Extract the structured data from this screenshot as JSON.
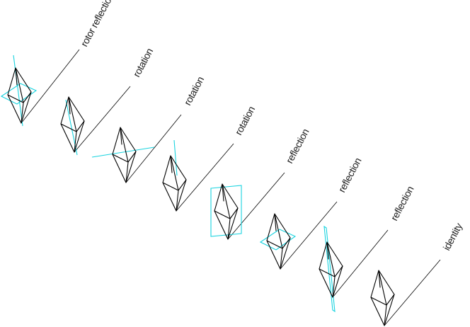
{
  "diagram": {
    "line_color": "#000000",
    "symmetry_color": "#19d3df",
    "operations": [
      {
        "label": "rotor reflection",
        "symmetry_element": "horizontal-plane-with-axis"
      },
      {
        "label": "rotation",
        "symmetry_element": "axis"
      },
      {
        "label": "rotation",
        "symmetry_element": "axis"
      },
      {
        "label": "rotation",
        "symmetry_element": "axis"
      },
      {
        "label": "reflection",
        "symmetry_element": "vertical-plane"
      },
      {
        "label": "reflection",
        "symmetry_element": "horizontal-plane"
      },
      {
        "label": "reflection",
        "symmetry_element": "vertical-plane"
      },
      {
        "label": "identity",
        "symmetry_element": "none"
      }
    ]
  }
}
